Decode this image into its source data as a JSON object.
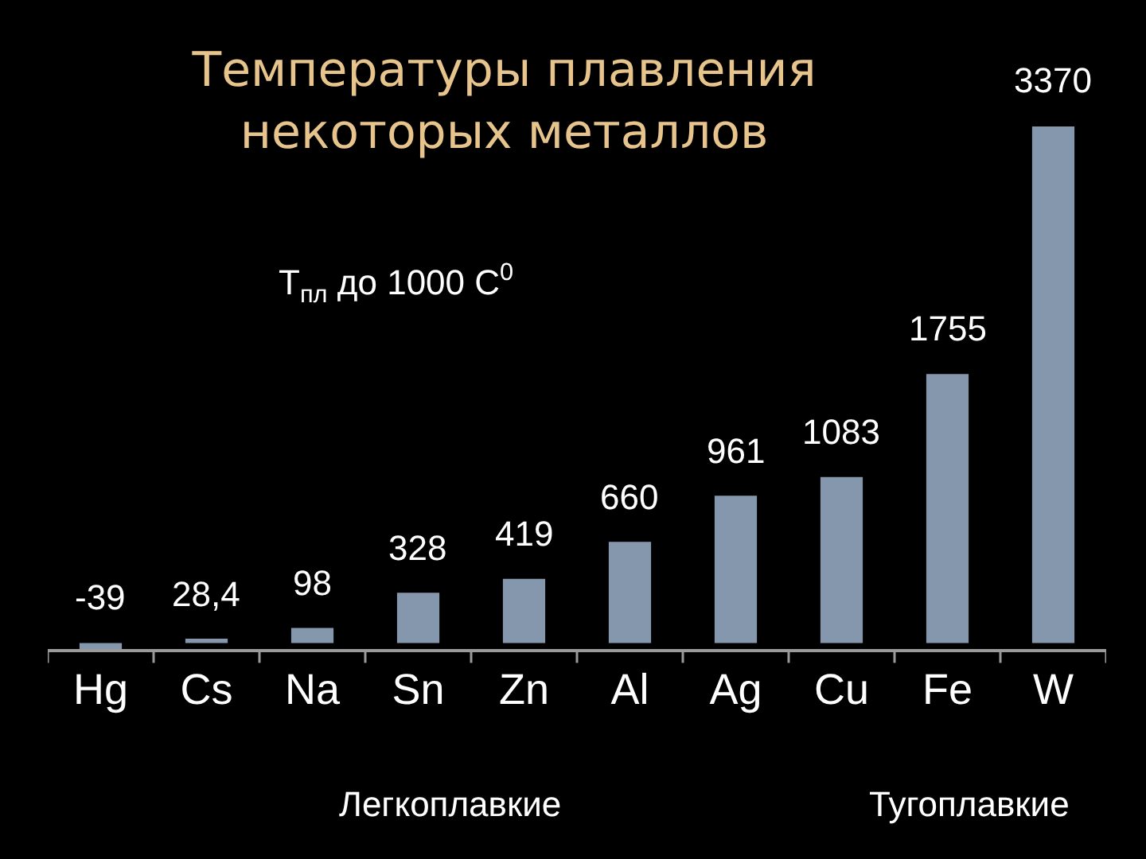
{
  "chart_data": {
    "type": "bar",
    "title": "Температуры плавления\nнекоторых металлов",
    "categories": [
      "Hg",
      "Cs",
      "Na",
      "Sn",
      "Zn",
      "Al",
      "Ag",
      "Cu",
      "Fe",
      "W"
    ],
    "values": [
      -39,
      28.4,
      98,
      328,
      419,
      660,
      961,
      1083,
      1755,
      3370
    ],
    "value_labels": [
      "-39",
      "28,4",
      "98",
      "328",
      "419",
      "660",
      "961",
      "1083",
      "1755",
      "3370"
    ],
    "color": "#8497ac",
    "tick_labels": "x",
    "grid": false,
    "annotations": [
      "T$_{пл}$ до 1000 С$^{0}$",
      "Легкоплавкие",
      "Тугоплавкие"
    ]
  }
}
